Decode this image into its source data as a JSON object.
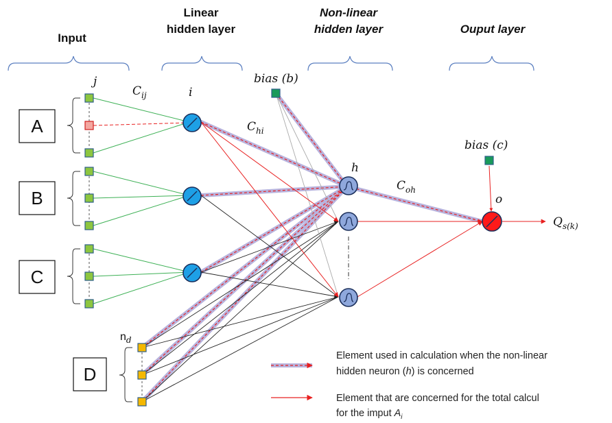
{
  "headers": {
    "input": "Input",
    "linear_line1": "Linear",
    "linear_line2": "hidden layer",
    "nonlinear_line1": "Non-linear",
    "nonlinear_line2": "hidden layer",
    "output": "Ouput layer"
  },
  "groups": [
    "A",
    "B",
    "C",
    "D"
  ],
  "labels": {
    "j": "j",
    "i": "i",
    "h": "h",
    "o": "o",
    "c_ij_base": "C",
    "c_ij_sub": "ij",
    "c_hi_base": "C",
    "c_hi_sub": "hi",
    "c_oh_base": "C",
    "c_oh_sub": "oh",
    "bias_b": "bias (b)",
    "bias_c": "bias (c)",
    "n_base": "n",
    "n_sub": "d",
    "q_base": "Q",
    "q_sub": "s(k)"
  },
  "legend": {
    "item1_line1": "Element used in calculation when the non-linear",
    "item1_line2_pre": "hidden neuron (",
    "item1_line2_var": "h",
    "item1_line2_post": ") is concerned",
    "item2_line1": "Element that are concerned for the total calcul",
    "item2_line2_pre": "for the imput ",
    "item2_line2_var": "A",
    "item2_line2_sub": "i"
  },
  "colors": {
    "input_node": "#8dc63f",
    "input_node_active": "#f4a7a0",
    "nd_node": "#f5b800",
    "linear_node": "#1ea0e6",
    "hidden_node": "#8fa8dc",
    "output_node": "#ff1a1a",
    "bias_node": "#1a9a5a",
    "green_line": "#3cb054",
    "red_line": "#e82020",
    "highlight": "#b8b3dd",
    "bracket": "#5b7fc0"
  }
}
